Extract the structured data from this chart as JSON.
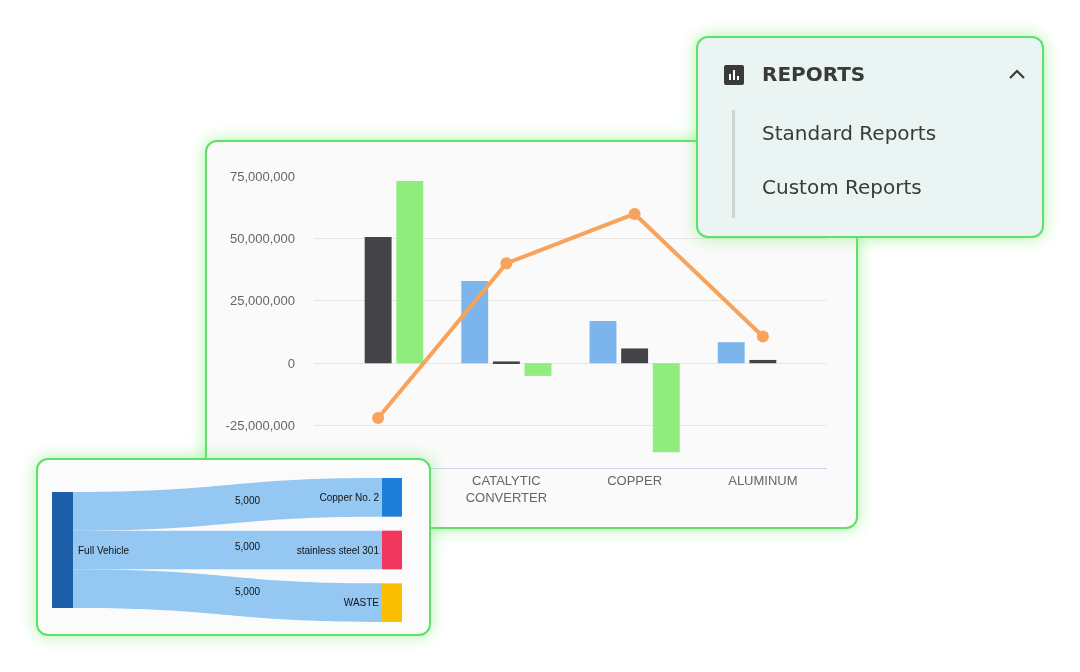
{
  "chart_data": [
    {
      "type": "bar",
      "categories": [
        null,
        "CATALYTIC CONVERTER",
        "COPPER",
        "ALUMINUM"
      ],
      "series": [
        {
          "color": "#7cb5ec",
          "values": [
            null,
            32900000,
            16900000,
            8400000
          ]
        },
        {
          "color": "#434348",
          "values": [
            50600000,
            700000,
            5900000,
            1300000
          ]
        },
        {
          "color": "#90ed7d",
          "values": [
            73000000,
            -5100000,
            -35700000,
            null
          ]
        },
        {
          "type": "line",
          "color": "#f7a35c",
          "values": [
            -22000000,
            40000000,
            59800000,
            10700000
          ]
        }
      ],
      "ylim": [
        -42000000,
        75000000
      ],
      "yticks": [
        {
          "value": -25000000,
          "label": "-25,000,000"
        },
        0,
        {
          "value": 25000000,
          "label": "25,000,000"
        },
        {
          "value": 50000000,
          "label": "50,000,000"
        },
        {
          "value": 75000000,
          "label": "75,000,000"
        }
      ],
      "grid": "y",
      "legend": false,
      "marker": "circle"
    },
    {
      "type": "other",
      "title": "REPORTS",
      "annotations": [
        "Standard Reports",
        "Custom Reports"
      ]
    },
    {
      "type": "other",
      "categories": [
        "Copper No. 2",
        "stainless steel 301",
        "WASTE"
      ],
      "colors": [
        "#1c5ea8",
        "#1e7fd8",
        "#f2375f",
        "#fbbf00"
      ],
      "series": [
        {
          "name": "Full Vehicle",
          "color": "#94c7f2",
          "values": [
            5000,
            5000,
            5000
          ],
          "value_labels": [
            "5,000",
            "5,000",
            "5,000"
          ]
        }
      ]
    }
  ]
}
